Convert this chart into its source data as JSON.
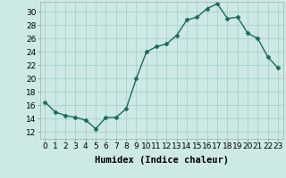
{
  "x": [
    0,
    1,
    2,
    3,
    4,
    5,
    6,
    7,
    8,
    9,
    10,
    11,
    12,
    13,
    14,
    15,
    16,
    17,
    18,
    19,
    20,
    21,
    22,
    23
  ],
  "y": [
    16.5,
    15.0,
    14.5,
    14.2,
    13.8,
    12.5,
    14.2,
    14.2,
    15.5,
    20.0,
    24.0,
    24.8,
    25.2,
    26.5,
    28.8,
    29.2,
    30.5,
    31.2,
    29.0,
    29.2,
    26.8,
    26.0,
    23.2,
    21.6
  ],
  "line_color": "#1a6b5a",
  "marker": "D",
  "marker_size": 2.5,
  "bg_color": "#cce9e5",
  "grid_color": "#aad0ca",
  "xlabel": "Humidex (Indice chaleur)",
  "yticks": [
    12,
    14,
    16,
    18,
    20,
    22,
    24,
    26,
    28,
    30
  ],
  "ylim": [
    11.0,
    31.5
  ],
  "xlim": [
    -0.5,
    23.5
  ],
  "xticks": [
    0,
    1,
    2,
    3,
    4,
    5,
    6,
    7,
    8,
    9,
    10,
    11,
    12,
    13,
    14,
    15,
    16,
    17,
    18,
    19,
    20,
    21,
    22,
    23
  ],
  "xlabel_fontsize": 7.5,
  "tick_fontsize": 6.5,
  "line_width": 1.0
}
